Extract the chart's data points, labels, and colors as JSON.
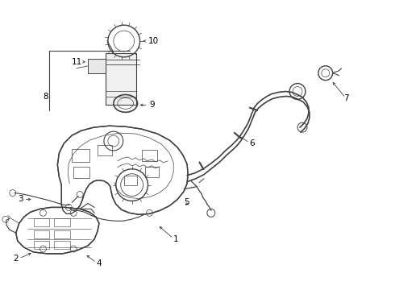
{
  "bg_color": "#ffffff",
  "line_color": "#404040",
  "label_color": "#000000",
  "fig_w": 4.9,
  "fig_h": 3.6,
  "dpi": 100
}
